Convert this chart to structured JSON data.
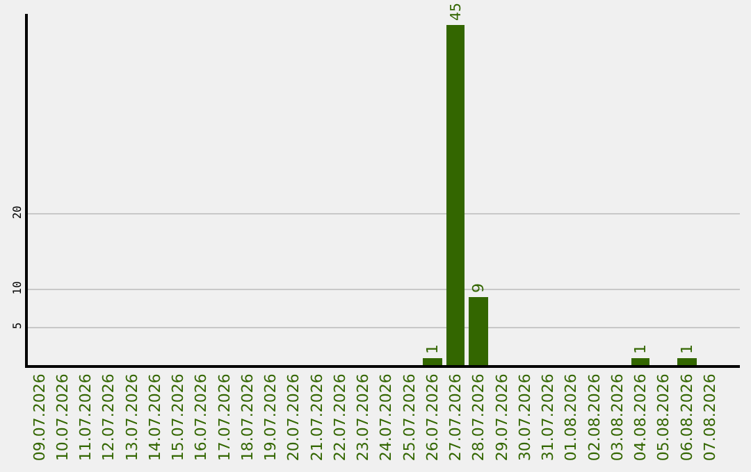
{
  "chart_data": {
    "type": "bar",
    "categories": [
      "09.07.2026",
      "10.07.2026",
      "11.07.2026",
      "12.07.2026",
      "13.07.2026",
      "14.07.2026",
      "15.07.2026",
      "16.07.2026",
      "17.07.2026",
      "18.07.2026",
      "19.07.2026",
      "20.07.2026",
      "21.07.2026",
      "22.07.2026",
      "23.07.2026",
      "24.07.2026",
      "25.07.2026",
      "26.07.2026",
      "27.07.2026",
      "28.07.2026",
      "29.07.2026",
      "30.07.2026",
      "31.07.2026",
      "01.08.2026",
      "02.08.2026",
      "03.08.2026",
      "04.08.2026",
      "05.08.2026",
      "06.08.2026",
      "07.08.2026"
    ],
    "values": [
      0,
      0,
      0,
      0,
      0,
      0,
      0,
      0,
      0,
      0,
      0,
      0,
      0,
      0,
      0,
      0,
      0,
      1,
      45,
      9,
      0,
      0,
      0,
      0,
      0,
      0,
      1,
      0,
      1,
      0
    ],
    "value_labels": [
      null,
      null,
      null,
      null,
      null,
      null,
      null,
      null,
      null,
      null,
      null,
      null,
      null,
      null,
      null,
      null,
      null,
      "1",
      "45",
      "9",
      null,
      null,
      null,
      null,
      null,
      null,
      "1",
      null,
      "1",
      null
    ],
    "color": "#336600",
    "ylim": [
      0,
      46.5
    ],
    "yticks": [
      5,
      10,
      20
    ],
    "grid": "y",
    "legend": false
  }
}
